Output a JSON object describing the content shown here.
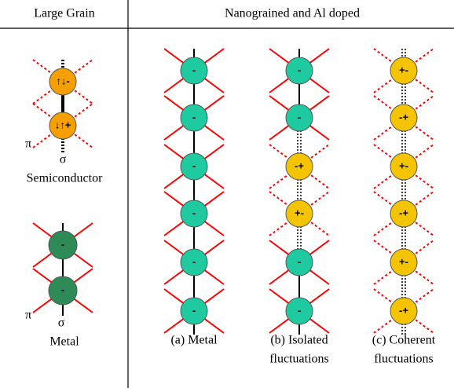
{
  "header": {
    "left": "Large Grain",
    "right": "Nanograined and Al doped"
  },
  "left": {
    "semiconductor": {
      "circles": [
        "↑↓-",
        "↓↑+"
      ],
      "pi": "π",
      "sigma": "σ",
      "label": "Semiconductor"
    },
    "metal": {
      "circles": [
        "-",
        "-"
      ],
      "pi": "π",
      "sigma": "σ",
      "label": "Metal"
    }
  },
  "columns": [
    {
      "circles": [
        "-",
        "-",
        "-",
        "-",
        "-",
        "-"
      ],
      "caption": [
        "(a) Metal"
      ]
    },
    {
      "circles": [
        "-",
        "-",
        "-+",
        "+-",
        "-",
        "-"
      ],
      "caption": [
        "(b) Isolated",
        "fluctuations"
      ]
    },
    {
      "circles": [
        "+-",
        "-+",
        "+-",
        "-+",
        "+-",
        "-+"
      ],
      "caption": [
        "(c) Coherent",
        "fluctuations"
      ]
    }
  ]
}
